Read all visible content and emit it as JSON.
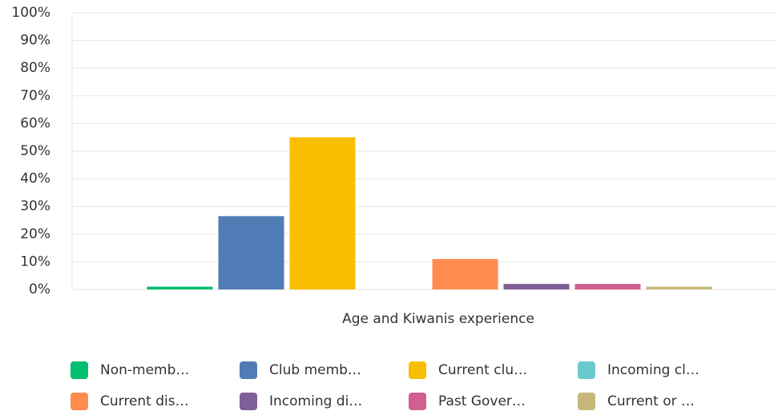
{
  "chart_data": {
    "type": "bar",
    "categories": [
      "Age and Kiwanis experience"
    ],
    "series": [
      {
        "name": "Non-memb…",
        "color": "#00bf6f",
        "values": [
          1
        ]
      },
      {
        "name": "Club memb…",
        "color": "#507cb6",
        "values": [
          26.5
        ]
      },
      {
        "name": "Current clu…",
        "color": "#f9be00",
        "values": [
          55
        ]
      },
      {
        "name": "Incoming cl…",
        "color": "#6bc8cd",
        "values": [
          0
        ]
      },
      {
        "name": "Current dis…",
        "color": "#ff8b4f",
        "values": [
          11
        ]
      },
      {
        "name": "Incoming di…",
        "color": "#7f5f97",
        "values": [
          2
        ]
      },
      {
        "name": "Past Gover…",
        "color": "#d25f90",
        "values": [
          2
        ]
      },
      {
        "name": "Current or …",
        "color": "#c7b879",
        "values": [
          1
        ]
      }
    ],
    "ylim": [
      0,
      100
    ],
    "yticks": [
      {
        "value": 0,
        "label": "0%"
      },
      {
        "value": 10,
        "label": "10%"
      },
      {
        "value": 20,
        "label": "20%"
      },
      {
        "value": 30,
        "label": "30%"
      },
      {
        "value": 40,
        "label": "40%"
      },
      {
        "value": 50,
        "label": "50%"
      },
      {
        "value": 60,
        "label": "60%"
      },
      {
        "value": 70,
        "label": "70%"
      },
      {
        "value": 80,
        "label": "80%"
      },
      {
        "value": 90,
        "label": "90%"
      },
      {
        "value": 100,
        "label": "100%"
      }
    ],
    "grid": true
  }
}
